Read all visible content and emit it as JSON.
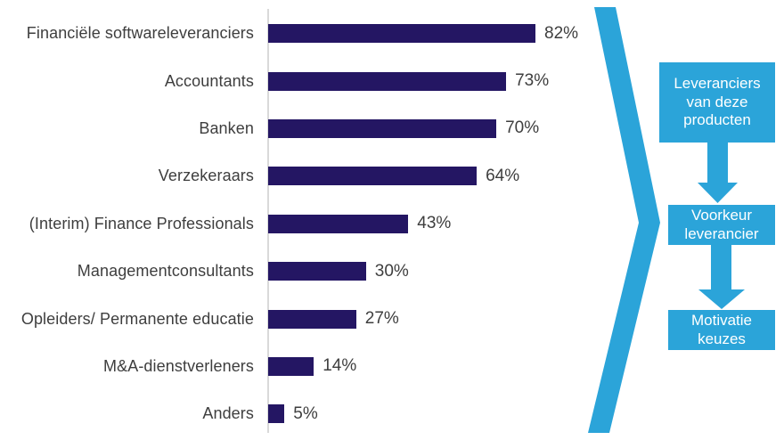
{
  "chart_data": {
    "type": "bar",
    "orientation": "horizontal",
    "title": "",
    "xlabel": "",
    "ylabel": "",
    "xlim": [
      0,
      100
    ],
    "grid": false,
    "legend": false,
    "categories": [
      "Financiële softwareleveranciers",
      "Accountants",
      "Banken",
      "Verzekeraars",
      "(Interim) Finance Professionals",
      "Managementconsultants",
      "Opleiders/ Permanente educatie",
      "M&A-dienstverleners",
      "Anders"
    ],
    "values": [
      82,
      73,
      70,
      64,
      43,
      30,
      27,
      14,
      5
    ],
    "value_labels": [
      "82%",
      "73%",
      "70%",
      "64%",
      "43%",
      "30%",
      "27%",
      "14%",
      "5%"
    ]
  },
  "flow": {
    "boxes": [
      {
        "id": "leveranciers",
        "text": "Leveranciers\nvan deze\nproducten"
      },
      {
        "id": "voorkeur",
        "text": "Voorkeur\nleverancier"
      },
      {
        "id": "motivatie",
        "text": "Motivatie\nkeuzes"
      }
    ]
  },
  "icons": {
    "chevron": "chevron-right-shape",
    "arrow1": "arrow-down-icon",
    "arrow2": "arrow-down-icon"
  },
  "colors": {
    "bar": "#241663",
    "accent": "#2BA4D9",
    "axis": "#D9D9D9",
    "text": "#3E3E3E",
    "box_text": "#FFFFFF"
  }
}
